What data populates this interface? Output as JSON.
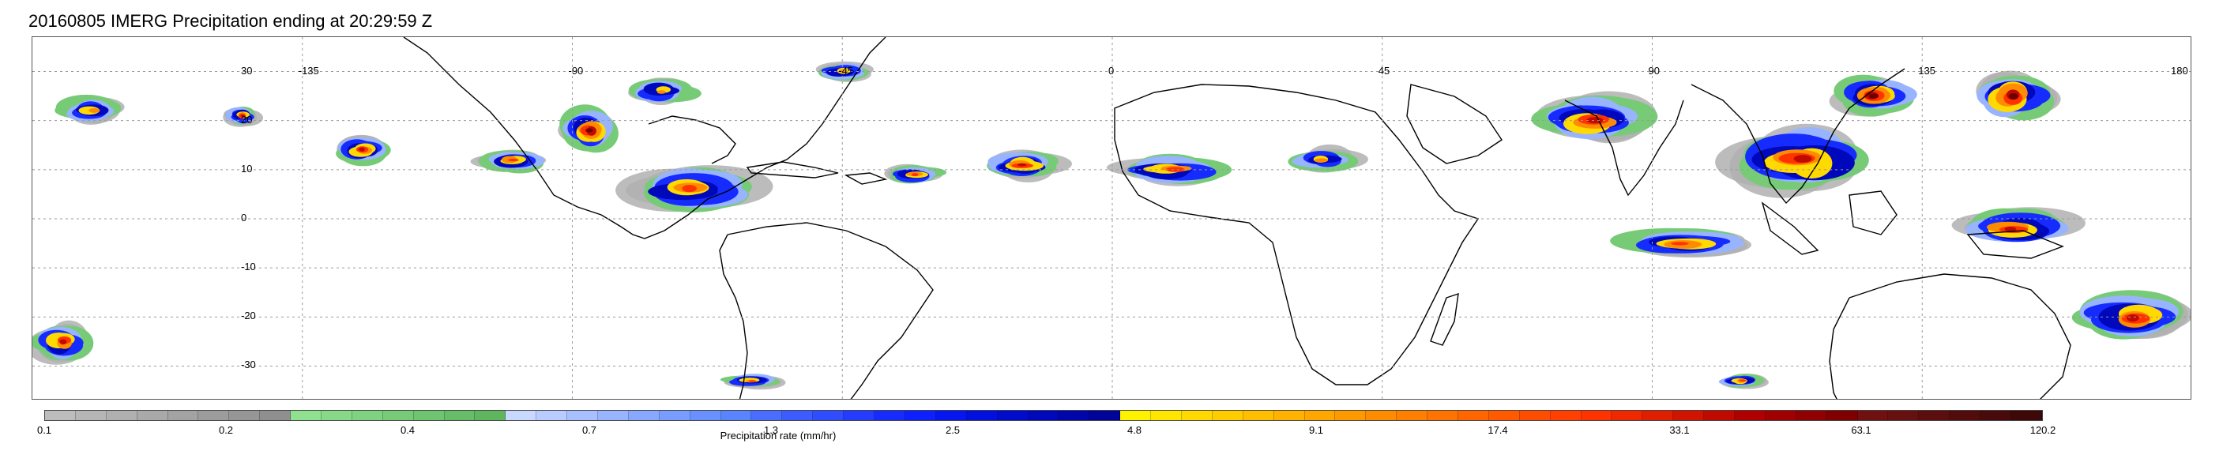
{
  "title": "20160805 IMERG Precipitation ending at 20:29:59 Z",
  "map": {
    "projection": "equirectangular",
    "lon_range": [
      -180,
      180
    ],
    "lat_range": [
      -37,
      37
    ],
    "grid": true,
    "lon_ticks": [
      "-135",
      "-90",
      "-45",
      "0",
      "45",
      "90",
      "135",
      "180"
    ],
    "lat_ticks": [
      "30",
      "20",
      "10",
      "0",
      "-10",
      "-20",
      "-30"
    ],
    "colors": {
      "frame": "#555555",
      "grid": "#9a9a9a",
      "coast": "#000000"
    },
    "precip_features": [
      {
        "lon": -170,
        "lat": 22,
        "lon_span": 12,
        "lat_span": 6,
        "max_rate": 9.1
      },
      {
        "lon": -145,
        "lat": 21,
        "lon_span": 6,
        "lat_span": 4,
        "max_rate": 33.1
      },
      {
        "lon": -125,
        "lat": 14,
        "lon_span": 10,
        "lat_span": 6,
        "max_rate": 33.1
      },
      {
        "lon": -100,
        "lat": 12,
        "lon_span": 12,
        "lat_span": 5,
        "max_rate": 17.4
      },
      {
        "lon": -87,
        "lat": 18,
        "lon_span": 10,
        "lat_span": 9,
        "max_rate": 63.1
      },
      {
        "lon": -75,
        "lat": 26,
        "lon_span": 12,
        "lat_span": 6,
        "max_rate": 9.1
      },
      {
        "lon": -70,
        "lat": 6,
        "lon_span": 22,
        "lat_span": 10,
        "max_rate": 17.4
      },
      {
        "lon": -45,
        "lat": 30,
        "lon_span": 10,
        "lat_span": 4,
        "max_rate": 9.1
      },
      {
        "lon": -33,
        "lat": 9,
        "lon_span": 10,
        "lat_span": 4,
        "max_rate": 17.4
      },
      {
        "lon": -15,
        "lat": 11,
        "lon_span": 14,
        "lat_span": 6,
        "max_rate": 33.1
      },
      {
        "lon": 10,
        "lat": 10,
        "lon_span": 20,
        "lat_span": 6,
        "max_rate": 17.4
      },
      {
        "lon": 35,
        "lat": 12,
        "lon_span": 12,
        "lat_span": 5,
        "max_rate": 9.1
      },
      {
        "lon": 80,
        "lat": 20,
        "lon_span": 20,
        "lat_span": 10,
        "max_rate": 33.1
      },
      {
        "lon": 95,
        "lat": -5,
        "lon_span": 24,
        "lat_span": 6,
        "max_rate": 17.4
      },
      {
        "lon": 115,
        "lat": 12,
        "lon_span": 24,
        "lat_span": 14,
        "max_rate": 33.1
      },
      {
        "lon": 127,
        "lat": 25,
        "lon_span": 14,
        "lat_span": 8,
        "max_rate": 63.1
      },
      {
        "lon": 150,
        "lat": 25,
        "lon_span": 14,
        "lat_span": 10,
        "max_rate": 120.2
      },
      {
        "lon": 150,
        "lat": -2,
        "lon_span": 20,
        "lat_span": 8,
        "max_rate": 33.1
      },
      {
        "lon": 170,
        "lat": -20,
        "lon_span": 20,
        "lat_span": 10,
        "max_rate": 33.1
      },
      {
        "lon": -175,
        "lat": -25,
        "lon_span": 10,
        "lat_span": 8,
        "max_rate": 33.1
      },
      {
        "lon": -60,
        "lat": -33,
        "lon_span": 10,
        "lat_span": 3,
        "max_rate": 17.4
      },
      {
        "lon": 105,
        "lat": -33,
        "lon_span": 8,
        "lat_span": 3,
        "max_rate": 17.4
      }
    ]
  },
  "colorbar": {
    "label": "Precipitation rate (mm/hr)",
    "tick_labels": [
      "0.1",
      "0.2",
      "0.4",
      "0.7",
      "1.3",
      "2.5",
      "4.8",
      "9.1",
      "17.4",
      "33.1",
      "63.1",
      "120.2"
    ],
    "colors": [
      "#bdbdbd",
      "#b6b6b6",
      "#b0b0b0",
      "#a9a9a9",
      "#a3a3a3",
      "#9c9c9c",
      "#969696",
      "#8f8f8f",
      "#8fe08f",
      "#87d987",
      "#7fd27f",
      "#77cb77",
      "#6fc46f",
      "#67bd67",
      "#5fb65f",
      "#c8d8ff",
      "#b8ccff",
      "#a8c0ff",
      "#98b4ff",
      "#88a8ff",
      "#789cff",
      "#6890ff",
      "#5884ff",
      "#4a6cff",
      "#3d5cff",
      "#304cff",
      "#233cff",
      "#162cff",
      "#0d20ff",
      "#0516f0",
      "#0010e0",
      "#000ccc",
      "#0008bb",
      "#0006aa",
      "#00049a",
      "#fff200",
      "#ffe600",
      "#ffd900",
      "#ffcc00",
      "#ffbf00",
      "#ffb300",
      "#ffa600",
      "#ff9900",
      "#ff8c00",
      "#ff8000",
      "#ff7300",
      "#ff6600",
      "#ff5a00",
      "#ff4d00",
      "#ff4000",
      "#ff3300",
      "#f02800",
      "#e01e00",
      "#d01400",
      "#c00a00",
      "#b00000",
      "#a00000",
      "#900000",
      "#800000",
      "#701010",
      "#661010",
      "#5c0e0e",
      "#520c0c",
      "#480a0a",
      "#3e0808"
    ],
    "precip_scale": [
      {
        "min": 0.1,
        "color": "#b0b0b0"
      },
      {
        "min": 0.2,
        "color": "#77cb77"
      },
      {
        "min": 0.4,
        "color": "#98b4ff"
      },
      {
        "min": 1.3,
        "color": "#162cff"
      },
      {
        "min": 2.5,
        "color": "#0008bb"
      },
      {
        "min": 4.8,
        "color": "#ffd900"
      },
      {
        "min": 9.1,
        "color": "#ff8c00"
      },
      {
        "min": 17.4,
        "color": "#ff3300"
      },
      {
        "min": 33.1,
        "color": "#c00a00"
      },
      {
        "min": 63.1,
        "color": "#700000"
      }
    ]
  }
}
